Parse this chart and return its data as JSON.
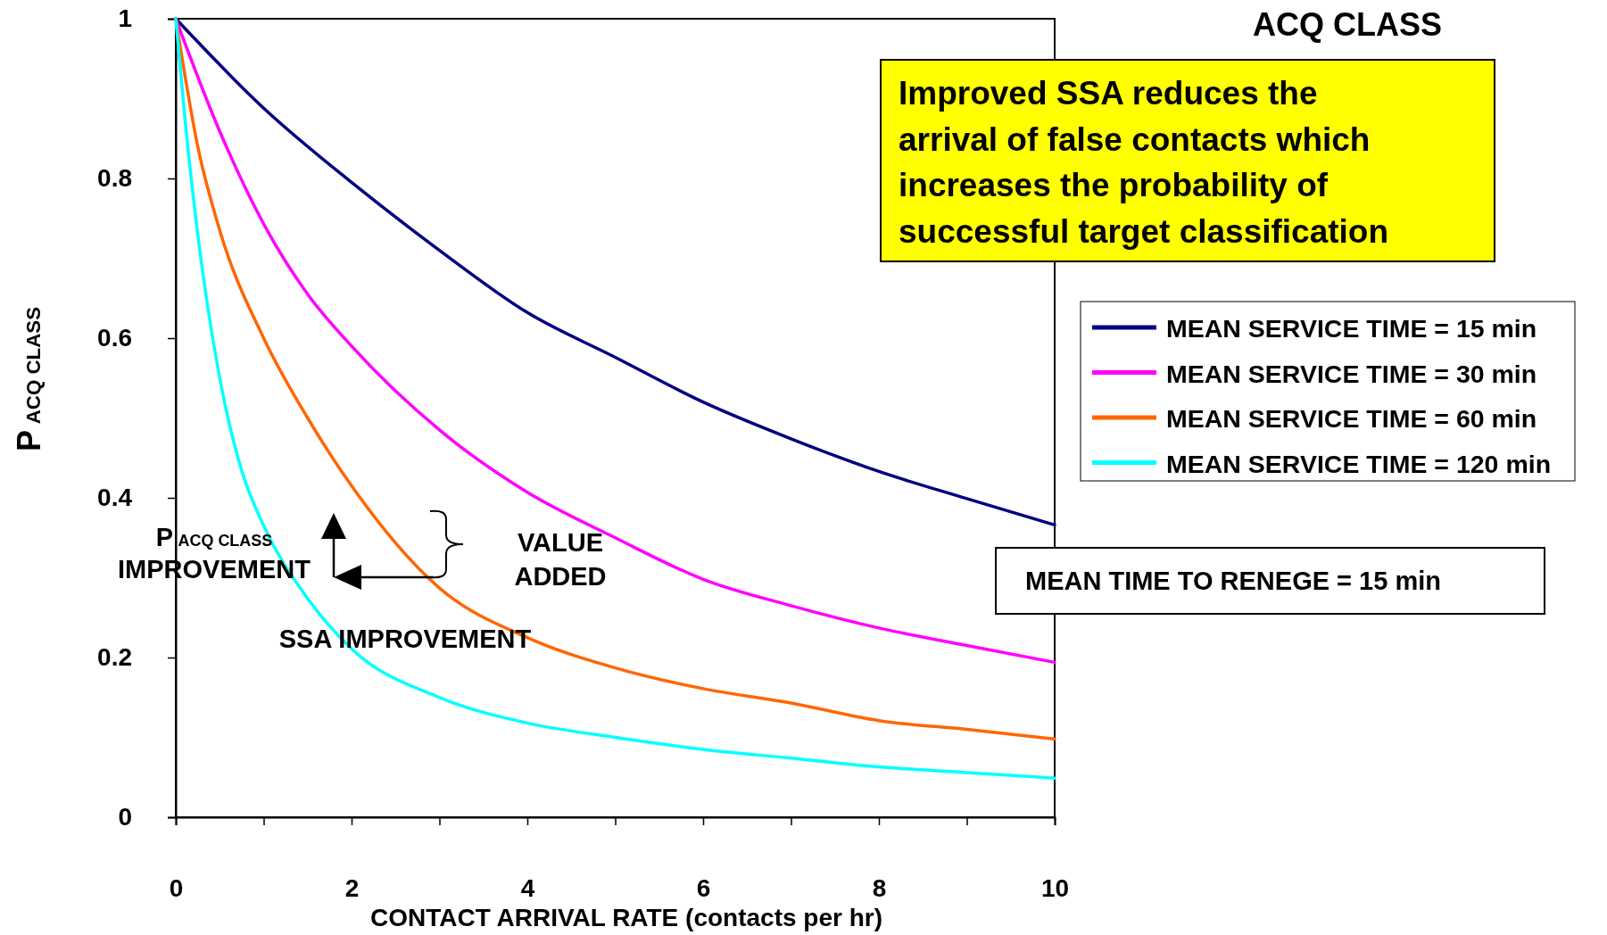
{
  "chart_data": {
    "type": "line",
    "title": "ACQ CLASS",
    "xlabel": "CONTACT ARRIVAL RATE (contacts per hr)",
    "ylabel": "P$_{ACQ CLASS}$",
    "xlim": [
      0,
      10
    ],
    "ylim": [
      0,
      1
    ],
    "xticks": [
      0,
      {
        "value": 1,
        "label": null
      },
      2,
      {
        "value": 3,
        "label": null
      },
      4,
      {
        "value": 5,
        "label": null
      },
      6,
      {
        "value": 7,
        "label": null
      },
      8,
      {
        "value": 9,
        "label": null
      },
      10
    ],
    "yticks": [
      0,
      0.2,
      0.4,
      0.6,
      0.8,
      1
    ],
    "grid": false,
    "legend": "right",
    "marker": "none",
    "line_style": "solid",
    "series": [
      {
        "name": "MEAN SERVICE TIME = 15 min",
        "color": "#000080",
        "x": [
          0,
          1,
          2,
          3,
          4,
          5,
          6,
          7,
          8,
          9,
          10
        ],
        "values": [
          1,
          0.888,
          0.795,
          0.71,
          0.632,
          0.576,
          0.52,
          0.474,
          0.433,
          0.399,
          0.366
        ]
      },
      {
        "name": "MEAN SERVICE TIME = 30 min",
        "color": "#ff00ff",
        "x": [
          0,
          0.5,
          1,
          1.5,
          2,
          3,
          4,
          5,
          6,
          7,
          8,
          9,
          10
        ],
        "values": [
          1,
          0.859,
          0.743,
          0.655,
          0.59,
          0.485,
          0.407,
          0.35,
          0.298,
          0.265,
          0.237,
          0.215,
          0.194
        ]
      },
      {
        "name": "MEAN SERVICE TIME = 60 min",
        "color": "#ff6600",
        "x": [
          0,
          0.25,
          0.5,
          1,
          1.5,
          2,
          3,
          4,
          5,
          6,
          7,
          8,
          9,
          10
        ],
        "values": [
          1,
          0.84,
          0.735,
          0.6,
          0.5,
          0.415,
          0.287,
          0.225,
          0.187,
          0.161,
          0.143,
          0.121,
          0.11,
          0.098
        ]
      },
      {
        "name": "MEAN SERVICE TIME = 120 min",
        "color": "#00ffff",
        "x": [
          0,
          0.1,
          0.25,
          0.5,
          0.75,
          1,
          1.5,
          2,
          3,
          4,
          5,
          6,
          7,
          8,
          9,
          10
        ],
        "values": [
          1,
          0.88,
          0.73,
          0.55,
          0.434,
          0.365,
          0.274,
          0.211,
          0.15,
          0.118,
          0.1,
          0.085,
          0.074,
          0.063,
          0.056,
          0.049
        ]
      }
    ],
    "annotations": [
      "Improved SSA reduces the\narrival of false contacts which\nincreases the probability of\nsuccessful target classification",
      "MEAN TIME TO RENEGE = 15 min",
      "P$_{ACQ CLASS}$\nIMPROVEMENT",
      "VALUE\nADDED",
      "SSA IMPROVEMENT"
    ]
  }
}
